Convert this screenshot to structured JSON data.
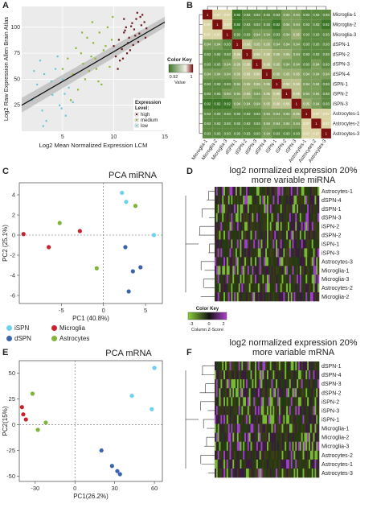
{
  "panels": {
    "A": "A",
    "B": "B",
    "C": "C",
    "D": "D",
    "E": "E",
    "F": "F"
  },
  "panelA": {
    "xlabel": "Log2 Mean Normalized Expression LCM",
    "ylabel": "Log2 Raw Expression Allen Brain Atlas",
    "xticks": [
      "5",
      "10",
      "15"
    ],
    "yticks": [
      "25",
      "50",
      "75",
      "100"
    ],
    "legend_title": "Expression\nLevel:",
    "legend_items": [
      {
        "label": "high",
        "color": "#6b1a1a"
      },
      {
        "label": "medium",
        "color": "#8ab833"
      },
      {
        "label": "low",
        "color": "#6cc6d8"
      }
    ]
  },
  "panelB": {
    "color_key_title": "Color Key",
    "color_key_ticks": [
      "0.92",
      "1"
    ],
    "color_key_label": "Value",
    "samples": [
      "Microglia-1",
      "Microglia-2",
      "Microglia-3",
      "dSPN-1",
      "dSPN-2",
      "dSPN-3",
      "dSPN-4",
      "iSPN-1",
      "iSPN-2",
      "iSPN-3",
      "Astrocytes-1",
      "Astrocytes-2",
      "Astrocytes-3"
    ],
    "row_labels": [
      "Microglia-1",
      "Microglia-2",
      "Microglia-3",
      "dSPN-1",
      "dSPN-2",
      "dSPN-3",
      "dSPN-4",
      "iSPN-1",
      "iSPN-2",
      "iSPN-3",
      "Astrocytes-1",
      "Astrocytes-2",
      "Astrocytes-3"
    ],
    "col_labels": [
      "Microglia-1",
      "Microglia-2",
      "Microglia-3",
      "dSPN-1",
      "dSPN-2",
      "dSPN-3",
      "dSPN-4",
      "iSPN-1",
      "iSPN-2",
      "iSPN-3",
      "Astrocytes-1",
      "Astrocytes-2",
      "Astrocytes-3"
    ],
    "matrix": [
      [
        "1",
        "0.97",
        "0.97",
        "0.92",
        "0.93",
        "0.93",
        "0.93",
        "0.93",
        "0.94",
        "0.94",
        "0.93",
        "0.93",
        "0.93"
      ],
      [
        "0.97",
        "1",
        "0.97",
        "0.92",
        "0.93",
        "0.93",
        "0.93",
        "0.92",
        "0.94",
        "0.94",
        "0.93",
        "0.93",
        "0.92"
      ],
      [
        "0.97",
        "0.97",
        "1",
        "0.93",
        "0.93",
        "0.94",
        "0.94",
        "0.93",
        "0.94",
        "0.95",
        "0.93",
        "0.93",
        "0.93"
      ],
      [
        "0.94",
        "0.94",
        "0.93",
        "1",
        "0.96",
        "0.95",
        "0.95",
        "0.94",
        "0.94",
        "0.94",
        "0.93",
        "0.93",
        "0.93"
      ],
      [
        "0.93",
        "0.93",
        "0.93",
        "0.96",
        "1",
        "0.96",
        "0.96",
        "0.95",
        "0.95",
        "0.94",
        "0.93",
        "0.93",
        "0.93"
      ],
      [
        "0.93",
        "0.93",
        "0.94",
        "0.95",
        "0.96",
        "1",
        "0.96",
        "0.95",
        "0.94",
        "0.94",
        "0.93",
        "0.94",
        "0.93"
      ],
      [
        "0.94",
        "0.94",
        "0.94",
        "0.95",
        "0.96",
        "0.96",
        "1",
        "0.95",
        "0.95",
        "0.95",
        "0.94",
        "0.94",
        "0.94"
      ],
      [
        "0.93",
        "0.93",
        "0.93",
        "0.94",
        "0.95",
        "0.95",
        "0.95",
        "1",
        "0.96",
        "0.96",
        "0.94",
        "0.94",
        "0.93"
      ],
      [
        "0.93",
        "0.93",
        "0.94",
        "0.94",
        "0.95",
        "0.94",
        "0.95",
        "0.96",
        "1",
        "0.96",
        "0.94",
        "0.94",
        "0.93"
      ],
      [
        "0.92",
        "0.92",
        "0.92",
        "0.94",
        "0.94",
        "0.94",
        "0.95",
        "0.96",
        "0.96",
        "1",
        "0.95",
        "0.94",
        "0.93"
      ],
      [
        "0.93",
        "0.93",
        "0.93",
        "0.93",
        "0.93",
        "0.93",
        "0.94",
        "0.94",
        "0.94",
        "0.95",
        "1",
        "0.97",
        "0.97"
      ],
      [
        "0.93",
        "0.93",
        "0.93",
        "0.93",
        "0.93",
        "0.93",
        "0.94",
        "0.94",
        "0.94",
        "0.94",
        "0.97",
        "1",
        "0.97"
      ],
      [
        "0.93",
        "0.93",
        "0.93",
        "0.93",
        "0.93",
        "0.93",
        "0.94",
        "0.93",
        "0.93",
        "0.93",
        "0.97",
        "0.97",
        "1"
      ]
    ]
  },
  "panelC": {
    "title": "PCA miRNA",
    "xlabel": "PC1 (40.8%)",
    "ylabel": "PC2 (25.1%)",
    "xticks": [
      "-5",
      "0",
      "5"
    ],
    "yticks": [
      "4",
      "2",
      "0",
      "-2",
      "-4",
      "-6"
    ]
  },
  "legendCE": {
    "items": [
      {
        "label": "iSPN",
        "color": "#6cd2ee"
      },
      {
        "label": "Microglia",
        "color": "#c8232c"
      },
      {
        "label": "dSPN",
        "color": "#3a64b0"
      },
      {
        "label": "Astrocytes",
        "color": "#7fb53a"
      }
    ]
  },
  "panelD": {
    "title": "log2 normalized expression 20%\nmore variable miRNA",
    "row_labels": [
      "Astrocytes-1",
      "dSPN-4",
      "dSPN-1",
      "dSPN-3",
      "iSPN-2",
      "dSPN-2",
      "iSPN-1",
      "iSPN-3",
      "Astrocytes-3",
      "Microglia-1",
      "Microglia-3",
      "Astrocytes-2",
      "Microglia-2"
    ]
  },
  "colorKeyDF": {
    "title": "Color Key",
    "ticks": [
      "-3",
      "0",
      "2"
    ],
    "label": "Column Z-Score"
  },
  "panelE": {
    "title": "PCA mRNA",
    "xlabel": "PC1(26.2%)",
    "ylabel": "PC2(15%)",
    "xticks": [
      "-30",
      "0",
      "30",
      "60"
    ],
    "yticks": [
      "50",
      "25",
      "0",
      "-25",
      "-50"
    ]
  },
  "panelF": {
    "title": "log2 normalized expression 20%\nmore variable mRNA",
    "row_labels": [
      "dSPN-1",
      "dSPN-4",
      "dSPN-3",
      "dSPN-2",
      "iSPN-2",
      "iSPN-3",
      "iSPN-1",
      "Microglia-1",
      "Microglia-2",
      "Microglia-3",
      "Astrocytes-2",
      "Astrocytes-1",
      "Astrocytes-3"
    ]
  },
  "chart_data": [
    {
      "type": "scatter",
      "panel": "A",
      "xlabel": "Log2 Mean Normalized Expression LCM",
      "ylabel": "Log2 Raw Expression Allen Brain Atlas",
      "xlim": [
        1,
        15
      ],
      "ylim": [
        0,
        120
      ],
      "series": [
        {
          "name": "high",
          "color": "#6b1a1a",
          "x": [
            10,
            10.5,
            11,
            11.2,
            11.5,
            11.8,
            12,
            12.2,
            12.5,
            12.8,
            13,
            10.2,
            10.8,
            11.4,
            12.1,
            12.6,
            11.1,
            11.7,
            12.4,
            13.2,
            10.6,
            11.3,
            11.9,
            12.3,
            10.4,
            11.6,
            12.7,
            13.1,
            10.9,
            11.0
          ],
          "y": [
            82,
            88,
            95,
            100,
            90,
            104,
            98,
            108,
            94,
            112,
            105,
            72,
            79,
            85,
            92,
            110,
            97,
            101,
            86,
            99,
            68,
            75,
            83,
            114,
            60,
            78,
            102,
            90,
            70,
            108
          ]
        },
        {
          "name": "medium",
          "color": "#8ab833",
          "x": [
            5,
            5.5,
            6,
            6.3,
            6.8,
            7,
            7.4,
            7.8,
            8,
            8.3,
            8.6,
            9,
            9.4,
            9.8,
            6.5,
            7.2,
            8.8,
            9.6,
            5.8,
            6.9,
            7.6,
            8.2,
            9.2,
            9.9,
            7.9,
            8.5
          ],
          "y": [
            60,
            70,
            55,
            80,
            75,
            65,
            90,
            72,
            85,
            60,
            95,
            78,
            100,
            88,
            40,
            50,
            45,
            62,
            30,
            95,
            58,
            70,
            82,
            110,
            105,
            48
          ]
        },
        {
          "name": "low",
          "color": "#6cc6d8",
          "x": [
            2,
            2.5,
            3,
            3.2,
            3.6,
            4,
            4.3,
            4.7,
            5,
            5.3,
            5.6,
            6,
            2.8,
            3.4,
            4.5,
            5.2,
            3.9,
            2.2,
            4.9,
            3.1
          ],
          "y": [
            30,
            45,
            20,
            55,
            40,
            35,
            60,
            25,
            50,
            15,
            42,
            28,
            68,
            10,
            72,
            36,
            48,
            58,
            22,
            5
          ]
        }
      ],
      "fit": {
        "x": [
          1,
          15
        ],
        "y": [
          25,
          105
        ]
      }
    },
    {
      "type": "heatmap",
      "panel": "B",
      "title": "",
      "rows": [
        "Microglia-1",
        "Microglia-2",
        "Microglia-3",
        "dSPN-1",
        "dSPN-2",
        "dSPN-3",
        "dSPN-4",
        "iSPN-1",
        "iSPN-2",
        "iSPN-3",
        "Astrocytes-1",
        "Astrocytes-2",
        "Astrocytes-3"
      ],
      "value_range": [
        0.92,
        1
      ]
    },
    {
      "type": "scatter",
      "panel": "C",
      "title": "PCA miRNA",
      "xlabel": "PC1 (40.8%)",
      "ylabel": "PC2 (25.1%)",
      "xlim": [
        -10,
        7
      ],
      "ylim": [
        -6.8,
        5.2
      ],
      "series": [
        {
          "name": "iSPN",
          "color": "#6cd2ee",
          "x": [
            2.2,
            2.7,
            6.0
          ],
          "y": [
            4.2,
            3.3,
            0.0
          ]
        },
        {
          "name": "Microglia",
          "color": "#c8232c",
          "x": [
            -9.5,
            -6.5,
            -2.8
          ],
          "y": [
            0.1,
            -1.2,
            0.4
          ]
        },
        {
          "name": "dSPN",
          "color": "#3a64b0",
          "x": [
            2.6,
            3.5,
            4.4,
            3.0
          ],
          "y": [
            -1.2,
            -3.6,
            -3.2,
            -5.6
          ]
        },
        {
          "name": "Astrocytes",
          "color": "#7fb53a",
          "x": [
            -5.2,
            -0.8,
            3.8
          ],
          "y": [
            1.2,
            -3.3,
            2.9
          ]
        }
      ]
    },
    {
      "type": "scatter",
      "panel": "E",
      "title": "PCA mRNA",
      "xlabel": "PC1(26.2%)",
      "ylabel": "PC2(15%)",
      "xlim": [
        -42,
        66
      ],
      "ylim": [
        -55,
        62
      ],
      "series": [
        {
          "name": "iSPN",
          "color": "#6cd2ee",
          "x": [
            60,
            58,
            43
          ],
          "y": [
            55,
            15,
            28
          ]
        },
        {
          "name": "Microglia",
          "color": "#c8232c",
          "x": [
            -40,
            -39,
            -37
          ],
          "y": [
            17,
            10,
            5
          ]
        },
        {
          "name": "dSPN",
          "color": "#3a64b0",
          "x": [
            20,
            28,
            32,
            34
          ],
          "y": [
            -25,
            -40,
            -45,
            -48
          ]
        },
        {
          "name": "Astrocytes",
          "color": "#7fb53a",
          "x": [
            -32,
            -22,
            -28
          ],
          "y": [
            30,
            2,
            -5
          ]
        }
      ]
    }
  ]
}
